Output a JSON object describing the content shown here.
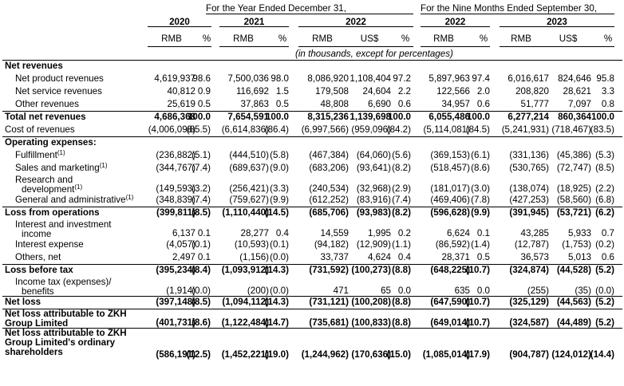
{
  "header": {
    "period_year": "For the Year Ended December 31,",
    "period_nine": "For the Nine Months Ended September 30,",
    "years": [
      "2020",
      "2021",
      "2022",
      "2022",
      "2023"
    ],
    "units": [
      "RMB",
      "%",
      "RMB",
      "%",
      "RMB",
      "US$",
      "%",
      "RMB",
      "%",
      "RMB",
      "US$",
      "%"
    ],
    "note": "(in thousands, except for percentages)"
  },
  "rows": [
    {
      "label": "Net revenues",
      "bold": true,
      "section": true,
      "cells": []
    },
    {
      "label": "Net product revenues",
      "indent": 1,
      "cells": [
        "4,619,937",
        "98.6",
        "7,500,036",
        "98.0",
        "8,086,920",
        "1,108,404",
        "97.2",
        "5,897,963",
        "97.4",
        "6,016,617",
        "824,646",
        "95.8"
      ]
    },
    {
      "label": "Net service revenues",
      "indent": 1,
      "cells": [
        "40,812",
        "0.9",
        "116,692",
        "1.5",
        "179,508",
        "24,604",
        "2.2",
        "122,566",
        "2.0",
        "208,820",
        "28,621",
        "3.3"
      ]
    },
    {
      "label": "Other revenues",
      "indent": 1,
      "cells": [
        "25,619",
        "0.5",
        "37,863",
        "0.5",
        "48,808",
        "6,690",
        "0.6",
        "34,957",
        "0.6",
        "51,777",
        "7,097",
        "0.8"
      ]
    },
    {
      "label": "Total net revenues",
      "bold": true,
      "cells": [
        "4,686,368",
        "100.0",
        "7,654,591",
        "100.0",
        "8,315,236",
        "1,139,698",
        "100.0",
        "6,055,486",
        "100.0",
        "6,277,214",
        "860,364",
        "100.0"
      ]
    },
    {
      "label": "Cost of revenues",
      "cells": [
        "(4,006,098)",
        "(85.5)",
        "(6,614,836)",
        "(86.4)",
        "(6,997,566)",
        "(959,096)",
        "(84.2)",
        "(5,114,081)",
        "(84.5)",
        "(5,241,931)",
        "(718,467)",
        "(83.5)"
      ]
    },
    {
      "label": "Operating expenses:",
      "bold": true,
      "section": true,
      "cells": []
    },
    {
      "label": "Fulfillment",
      "sup": "(1)",
      "indent": 1,
      "cells": [
        "(236,882)",
        "(5.1)",
        "(444,510)",
        "(5.8)",
        "(467,384)",
        "(64,060)",
        "(5.6)",
        "(369,153)",
        "(6.1)",
        "(331,136)",
        "(45,386)",
        "(5.3)"
      ]
    },
    {
      "label": "Sales and marketing",
      "sup": "(1)",
      "indent": 1,
      "cells": [
        "(344,767)",
        "(7.4)",
        "(689,637)",
        "(9.0)",
        "(683,206)",
        "(93,641)",
        "(8.2)",
        "(518,457)",
        "(8.6)",
        "(530,765)",
        "(72,747)",
        "(8.5)"
      ]
    },
    {
      "label": "Research and",
      "label2": "development",
      "sup": "(1)",
      "indent": 1,
      "tall": true,
      "cells": [
        "(149,593)",
        "(3.2)",
        "(256,421)",
        "(3.3)",
        "(240,534)",
        "(32,968)",
        "(2.9)",
        "(181,017)",
        "(3.0)",
        "(138,074)",
        "(18,925)",
        "(2.2)"
      ]
    },
    {
      "label": "General and administrative",
      "sup": "(1)",
      "indent": 1,
      "cells": [
        "(348,839)",
        "(7.4)",
        "(759,627)",
        "(9.9)",
        "(612,252)",
        "(83,916)",
        "(7.4)",
        "(469,406)",
        "(7.8)",
        "(427,253)",
        "(58,560)",
        "(6.8)"
      ]
    },
    {
      "label": "Loss from operations",
      "bold": true,
      "cells": [
        "(399,811)",
        "(8.5)",
        "(1,110,440)",
        "(14.5)",
        "(685,706)",
        "(93,983)",
        "(8.2)",
        "(596,628)",
        "(9.9)",
        "(391,945)",
        "(53,721)",
        "(6.2)"
      ]
    },
    {
      "label": "Interest and investment",
      "label2": "income",
      "indent": 1,
      "tall": true,
      "cells": [
        "6,137",
        "0.1",
        "28,277",
        "0.4",
        "14,559",
        "1,995",
        "0.2",
        "6,624",
        "0.1",
        "43,285",
        "5,933",
        "0.7"
      ]
    },
    {
      "label": "Interest expense",
      "indent": 1,
      "cells": [
        "(4,057)",
        "(0.1)",
        "(10,593)",
        "(0.1)",
        "(94,182)",
        "(12,909)",
        "(1.1)",
        "(86,592)",
        "(1.4)",
        "(12,787)",
        "(1,753)",
        "(0.2)"
      ]
    },
    {
      "label": "Others, net",
      "indent": 1,
      "cells": [
        "2,497",
        "0.1",
        "(1,156)",
        "(0.0)",
        "33,737",
        "4,624",
        "0.4",
        "28,371",
        "0.5",
        "36,573",
        "5,013",
        "0.6"
      ]
    },
    {
      "label": "Loss before tax",
      "bold": true,
      "cells": [
        "(395,234)",
        "(8.4)",
        "(1,093,912)",
        "(14.3)",
        "(731,592)",
        "(100,273)",
        "(8.8)",
        "(648,225)",
        "(10.7)",
        "(324,874)",
        "(44,528)",
        "(5.2)"
      ]
    },
    {
      "label": "Income tax (expenses)/",
      "label2": "benefits",
      "indent": 1,
      "tall": true,
      "cells": [
        "(1,914)",
        "(0.0)",
        "(200)",
        "(0.0)",
        "471",
        "65",
        "0.0",
        "635",
        "0.0",
        "(255)",
        "(35)",
        "(0.0)"
      ]
    },
    {
      "label": "Net loss",
      "bold": true,
      "cells": [
        "(397,148)",
        "(8.5)",
        "(1,094,112)",
        "(14.3)",
        "(731,121)",
        "(100,208)",
        "(8.8)",
        "(647,590)",
        "(10.7)",
        "(325,129)",
        "(44,563)",
        "(5.2)"
      ]
    },
    {
      "label": "Net loss attributable to ZKH",
      "label2": "Group Limited",
      "bold": true,
      "tall": true,
      "cells": [
        "(401,731)",
        "(8.6)",
        "(1,122,484)",
        "(14.7)",
        "(735,681)",
        "(100,833)",
        "(8.8)",
        "(649,014)",
        "(10.7)",
        "(324,587)",
        "(44,489)",
        "(5.2)"
      ]
    },
    {
      "label": "Net loss attributable to ZKH",
      "label2": "Group Limited's ordinary",
      "label3": "shareholders",
      "bold": true,
      "tall3": true,
      "cells": [
        "(586,191)",
        "(12.5)",
        "(1,452,221)",
        "(19.0)",
        "(1,244,962)",
        "(170,636)",
        "(15.0)",
        "(1,085,014)",
        "(17.9)",
        "(904,787)",
        "(124,012)",
        "(14.4)"
      ]
    }
  ]
}
